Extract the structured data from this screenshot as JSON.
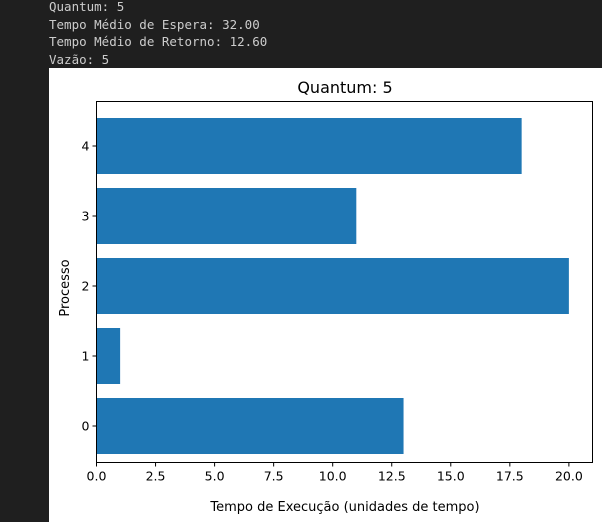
{
  "console": {
    "lines": [
      "Quantum: 5",
      "Tempo Médio de Espera: 32.00",
      "Tempo Médio de Retorno: 12.60",
      "Vazão: 5"
    ]
  },
  "colors": {
    "bar": "#1f77b4",
    "background": "#1f1f1f",
    "console_text": "#cccccc"
  },
  "chart_data": {
    "type": "bar",
    "orientation": "horizontal",
    "title": "Quantum: 5",
    "xlabel": "Tempo de Execução (unidades de tempo)",
    "ylabel": "Processo",
    "categories": [
      "0",
      "1",
      "2",
      "3",
      "4"
    ],
    "values": [
      13,
      1,
      20,
      11,
      18
    ],
    "xlim": [
      0,
      21
    ],
    "xticks": [
      "0.0",
      "2.5",
      "5.0",
      "7.5",
      "10.0",
      "12.5",
      "15.0",
      "17.5",
      "20.0"
    ],
    "grid": false,
    "legend": "none"
  }
}
